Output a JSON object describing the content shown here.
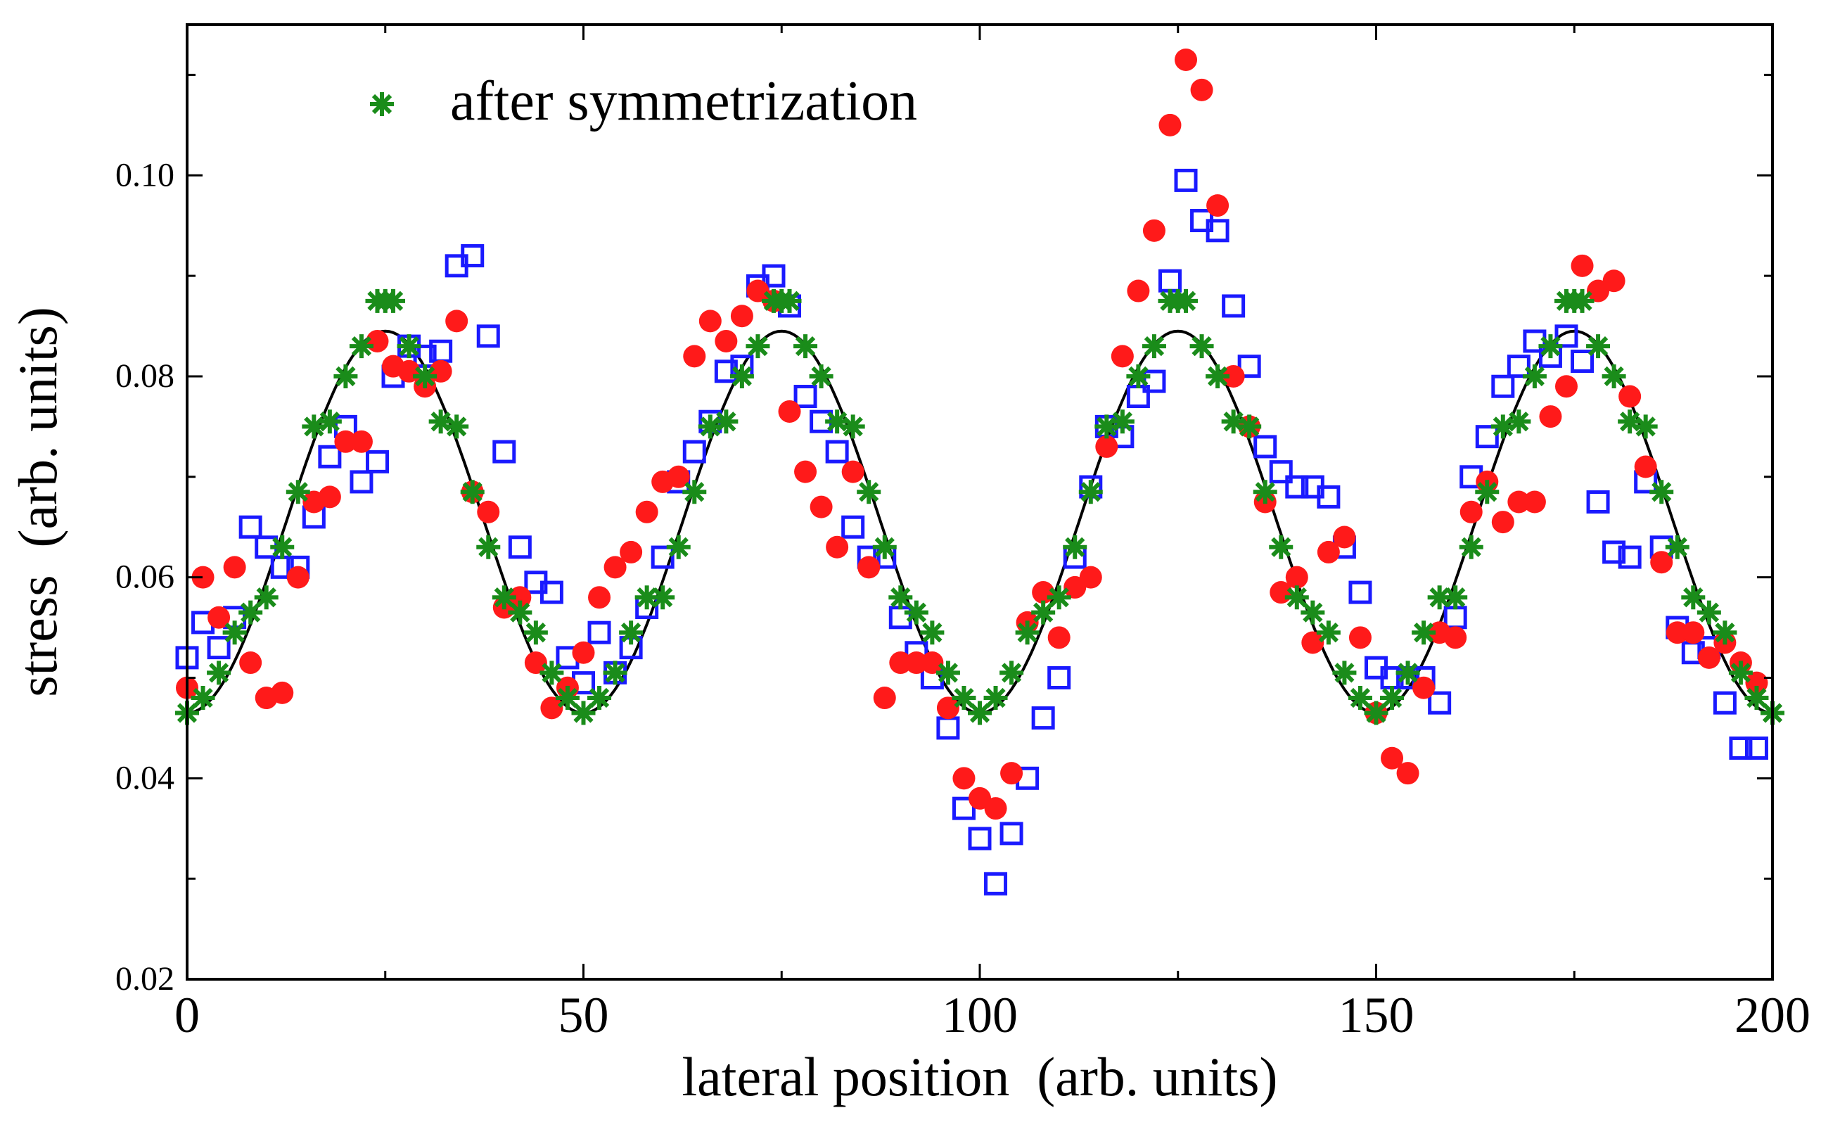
{
  "chart_data": {
    "type": "scatter",
    "title": "",
    "xlabel": "lateral position  (arb. units)",
    "ylabel": "stress  (arb. units)",
    "xlim": [
      0,
      200
    ],
    "ylim": [
      0.02,
      0.115
    ],
    "x_ticks": [
      0,
      50,
      100,
      150,
      200
    ],
    "x_tick_labels": [
      "0",
      "50",
      "100",
      "150",
      "200"
    ],
    "y_ticks": [
      0.02,
      0.04,
      0.06,
      0.08,
      0.1
    ],
    "y_tick_labels": [
      "0.02",
      "0.04",
      "0.06",
      "0.08",
      "0.10"
    ],
    "grid": false,
    "legend": {
      "placement": "top-left",
      "entries": [
        {
          "label": "after symmetrization",
          "series": "symmetrized"
        }
      ]
    },
    "colors": {
      "squares": "#1a1aff",
      "circles": "#ff1a1a",
      "stars": "#1a8c1a",
      "curve": "#000000"
    },
    "series": [
      {
        "name": "fit",
        "kind": "line",
        "function": "0.0655 - 0.019*cos(2*pi*x/50)",
        "x_range": [
          0,
          200
        ]
      },
      {
        "name": "raw-squares",
        "kind": "open-square",
        "x": [
          0,
          2,
          4,
          6,
          8,
          10,
          12,
          14,
          16,
          18,
          20,
          22,
          24,
          26,
          28,
          30,
          32,
          34,
          36,
          38,
          40,
          42,
          44,
          46,
          48,
          50,
          52,
          54,
          56,
          58,
          60,
          62,
          64,
          66,
          68,
          70,
          72,
          74,
          76,
          78,
          80,
          82,
          84,
          86,
          88,
          90,
          92,
          94,
          96,
          98,
          100,
          102,
          104,
          106,
          108,
          110,
          112,
          114,
          116,
          118,
          120,
          122,
          124,
          126,
          128,
          130,
          132,
          134,
          136,
          138,
          140,
          142,
          144,
          146,
          148,
          150,
          152,
          154,
          156,
          158,
          160,
          162,
          164,
          166,
          168,
          170,
          172,
          174,
          176,
          178,
          180,
          182,
          184,
          186,
          188,
          190,
          192,
          194,
          196,
          198
        ],
        "y": [
          0.052,
          0.0555,
          0.053,
          0.056,
          0.065,
          0.063,
          0.061,
          0.061,
          0.066,
          0.072,
          0.075,
          0.0695,
          0.0715,
          0.08,
          0.083,
          0.082,
          0.0825,
          0.091,
          0.092,
          0.084,
          0.0725,
          0.063,
          0.0595,
          0.0585,
          0.052,
          0.0495,
          0.0545,
          0.0505,
          0.053,
          0.057,
          0.062,
          0.0695,
          0.0725,
          0.0755,
          0.0805,
          0.081,
          0.089,
          0.09,
          0.087,
          0.078,
          0.0755,
          0.0725,
          0.065,
          0.062,
          0.062,
          0.056,
          0.0525,
          0.05,
          0.045,
          0.037,
          0.034,
          0.0295,
          0.0345,
          0.04,
          0.046,
          0.05,
          0.062,
          0.069,
          0.075,
          0.074,
          0.078,
          0.0795,
          0.0895,
          0.0995,
          0.0955,
          0.0945,
          0.087,
          0.081,
          0.073,
          0.0705,
          0.069,
          0.069,
          0.068,
          0.063,
          0.0585,
          0.051,
          0.05,
          0.05,
          0.05,
          0.0475,
          0.056,
          0.07,
          0.074,
          0.079,
          0.081,
          0.0835,
          0.082,
          0.084,
          0.0815,
          0.0675,
          0.0625,
          0.062,
          0.0695,
          0.063,
          0.055,
          0.0525,
          0.053,
          0.0475,
          0.043,
          0.043
        ]
      },
      {
        "name": "raw-circles",
        "kind": "filled-circle",
        "x": [
          0,
          2,
          4,
          6,
          8,
          10,
          12,
          14,
          16,
          18,
          20,
          22,
          24,
          26,
          28,
          30,
          32,
          34,
          36,
          38,
          40,
          42,
          44,
          46,
          48,
          50,
          52,
          54,
          56,
          58,
          60,
          62,
          64,
          66,
          68,
          70,
          72,
          74,
          76,
          78,
          80,
          82,
          84,
          86,
          88,
          90,
          92,
          94,
          96,
          98,
          100,
          102,
          104,
          106,
          108,
          110,
          112,
          114,
          116,
          118,
          120,
          122,
          124,
          126,
          128,
          130,
          132,
          134,
          136,
          138,
          140,
          142,
          144,
          146,
          148,
          150,
          152,
          154,
          156,
          158,
          160,
          162,
          164,
          166,
          168,
          170,
          172,
          174,
          176,
          178,
          180,
          182,
          184,
          186,
          188,
          190,
          192,
          194,
          196,
          198
        ],
        "y": [
          0.049,
          0.06,
          0.056,
          0.061,
          0.0515,
          0.048,
          0.0485,
          0.06,
          0.0675,
          0.068,
          0.0735,
          0.0735,
          0.0835,
          0.081,
          0.0805,
          0.079,
          0.0805,
          0.0855,
          0.0685,
          0.0665,
          0.057,
          0.058,
          0.0515,
          0.047,
          0.049,
          0.0525,
          0.058,
          0.061,
          0.0625,
          0.0665,
          0.0695,
          0.07,
          0.082,
          0.0855,
          0.0835,
          0.086,
          0.0885,
          0.0875,
          0.0765,
          0.0705,
          0.067,
          0.063,
          0.0705,
          0.061,
          0.048,
          0.0515,
          0.0515,
          0.0515,
          0.047,
          0.04,
          0.038,
          0.037,
          0.0405,
          0.0555,
          0.0585,
          0.054,
          0.059,
          0.06,
          0.073,
          0.082,
          0.0885,
          0.0945,
          0.105,
          0.1115,
          0.1085,
          0.097,
          0.08,
          0.075,
          0.0675,
          0.0585,
          0.06,
          0.0535,
          0.0625,
          0.064,
          0.054,
          0.0465,
          0.042,
          0.0405,
          0.049,
          0.0545,
          0.054,
          0.0665,
          0.0695,
          0.0655,
          0.0675,
          0.0675,
          0.076,
          0.079,
          0.091,
          0.0885,
          0.0895,
          0.078,
          0.071,
          0.0615,
          0.0545,
          0.0545,
          0.052,
          0.0535,
          0.0515,
          0.0495
        ]
      },
      {
        "name": "symmetrized",
        "kind": "star",
        "x": [
          0,
          2,
          4,
          6,
          8,
          10,
          12,
          14,
          16,
          18,
          20,
          22,
          24,
          25,
          26,
          28,
          30,
          32,
          34,
          36,
          38,
          40,
          42,
          44,
          46,
          48,
          50,
          52,
          54,
          56,
          58,
          60,
          62,
          64,
          66,
          68,
          70,
          72,
          74,
          75,
          76,
          78,
          80,
          82,
          84,
          86,
          88,
          90,
          92,
          94,
          96,
          98,
          100,
          102,
          104,
          106,
          108,
          110,
          112,
          114,
          116,
          118,
          120,
          122,
          124,
          125,
          126,
          128,
          130,
          132,
          134,
          136,
          138,
          140,
          142,
          144,
          146,
          148,
          150,
          152,
          154,
          156,
          158,
          160,
          162,
          164,
          166,
          168,
          170,
          172,
          174,
          175,
          176,
          178,
          180,
          182,
          184,
          186,
          188,
          190,
          192,
          194,
          196,
          198,
          200
        ],
        "y": [
          0.0465,
          0.048,
          0.0505,
          0.0545,
          0.0565,
          0.058,
          0.063,
          0.0685,
          0.075,
          0.0755,
          0.08,
          0.083,
          0.0875,
          0.0875,
          0.0875,
          0.083,
          0.08,
          0.0755,
          0.075,
          0.0685,
          0.063,
          0.058,
          0.0565,
          0.0545,
          0.0505,
          0.048,
          0.0465,
          0.048,
          0.0505,
          0.0545,
          0.058,
          0.058,
          0.063,
          0.0685,
          0.075,
          0.0755,
          0.08,
          0.083,
          0.0875,
          0.0875,
          0.0875,
          0.083,
          0.08,
          0.0755,
          0.075,
          0.0685,
          0.063,
          0.058,
          0.0565,
          0.0545,
          0.0505,
          0.048,
          0.0465,
          0.048,
          0.0505,
          0.0545,
          0.0565,
          0.058,
          0.063,
          0.0685,
          0.075,
          0.0755,
          0.08,
          0.083,
          0.0875,
          0.0875,
          0.0875,
          0.083,
          0.08,
          0.0755,
          0.075,
          0.0685,
          0.063,
          0.058,
          0.0565,
          0.0545,
          0.0505,
          0.048,
          0.0465,
          0.048,
          0.0505,
          0.0545,
          0.058,
          0.058,
          0.063,
          0.0685,
          0.075,
          0.0755,
          0.08,
          0.083,
          0.0875,
          0.0875,
          0.0875,
          0.083,
          0.08,
          0.0755,
          0.075,
          0.0685,
          0.063,
          0.058,
          0.0565,
          0.0545,
          0.0505,
          0.048,
          0.0465
        ]
      }
    ]
  }
}
